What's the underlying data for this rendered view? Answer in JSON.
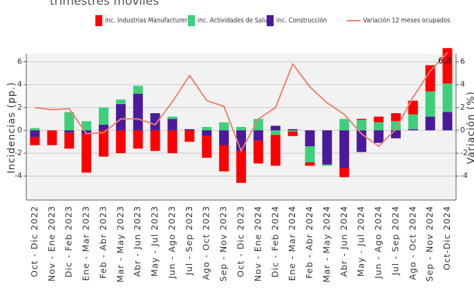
{
  "chart_data": {
    "type": "bar",
    "stacked": true,
    "title": "trimestres móviles",
    "y_label": "Incidencias (pp.)",
    "y2_label": "Variación (%)",
    "categories": [
      "Oct - Dic 2022",
      "Nov - Ene 2023",
      "Dic - Feb 2023",
      "Ene - Mar 2023",
      "Feb - Abr 2023",
      "Mar - May 2023",
      "Abr - Jun 2023",
      "May - Jul 2023",
      "Jun - Ago 2023",
      "Jul - Sep 2023",
      "Ago - Oct 2023",
      "Sep - Nov 2023",
      "Oct - Dic 2023",
      "Nov - Ene 2024",
      "Dic - Feb 2024",
      "Ene - Mar 2024",
      "Feb - Abr 2024",
      "Mar - May 2024",
      "Abr - Jun 2024",
      "May - Jul 2024",
      "Jun - Ago 2024",
      "Jul - Sep 2024",
      "Ago - Oct 2024",
      "Sep - Nov 2024",
      "Oct-Dic 2024"
    ],
    "series": [
      {
        "name": "inc. Industrias Manufactureras",
        "color": "#ff0000",
        "type": "bar",
        "values": [
          -0.7,
          -1.3,
          -1.4,
          -3.4,
          -2.3,
          -2.0,
          -1.6,
          -1.8,
          -2.0,
          -1.0,
          -1.9,
          -2.3,
          -2.8,
          -2.0,
          -2.7,
          -0.4,
          -0.3,
          0,
          -0.8,
          0.1,
          0.5,
          0.7,
          1.2,
          2.3,
          3.1
        ]
      },
      {
        "name": "inc. Actividades de Salud",
        "color": "#3ecf7a",
        "type": "bar",
        "values": [
          0.2,
          0,
          1.6,
          0.8,
          1.5,
          0.4,
          0.7,
          0,
          0.2,
          0,
          0.3,
          0.7,
          0.3,
          1.0,
          -0.4,
          -0.1,
          -1.4,
          -0.1,
          1.0,
          0.9,
          0.7,
          0.8,
          1.3,
          2.2,
          2.5
        ]
      },
      {
        "name": "inc. Construcción",
        "color": "#4b1a9a",
        "type": "bar",
        "values": [
          -0.6,
          0,
          -0.2,
          -0.3,
          0.5,
          2.3,
          3.2,
          1.5,
          1.0,
          0.1,
          -0.5,
          -1.3,
          -1.8,
          -0.9,
          0.4,
          0.1,
          -1.4,
          -3.0,
          -3.3,
          -1.9,
          -1.1,
          -0.7,
          0.1,
          1.2,
          1.6
        ]
      },
      {
        "name": "Variación 12 meses ocupados",
        "color": "#f08070",
        "type": "line",
        "axis": "y2",
        "values": [
          2.0,
          1.8,
          1.9,
          -0.3,
          -0.2,
          1.0,
          1.0,
          0.5,
          2.5,
          4.8,
          2.6,
          2.1,
          -1.8,
          1.0,
          2.0,
          5.8,
          3.8,
          2.4,
          1.4,
          -0.3,
          -1.4,
          0.1,
          2.9,
          5.2,
          6.8
        ]
      }
    ],
    "ylim": [
      -6.1,
      6.7
    ],
    "yticks": [
      -4,
      -2,
      0,
      2,
      4,
      6
    ],
    "y2lim": [
      -6.1,
      6.7
    ],
    "y2ticks": [
      -4,
      -2,
      0,
      2,
      4,
      6
    ],
    "grid": true
  }
}
